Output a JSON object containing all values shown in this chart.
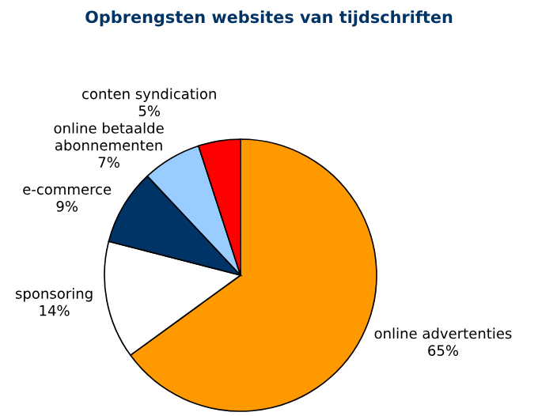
{
  "chart_data": {
    "type": "pie",
    "title": "Opbrengsten websites van tijdschriften",
    "categories": [
      "online advertenties",
      "sponsoring",
      "e-commerce",
      "online betaalde\nabonnementen",
      "conten syndication"
    ],
    "values": [
      65,
      14,
      9,
      7,
      5
    ],
    "value_labels": [
      "65%",
      "14%",
      "9%",
      "7%",
      "5%"
    ],
    "colors": [
      "#ff9900",
      "#ffffff",
      "#003366",
      "#99ccff",
      "#ff0000"
    ],
    "legend": false
  }
}
